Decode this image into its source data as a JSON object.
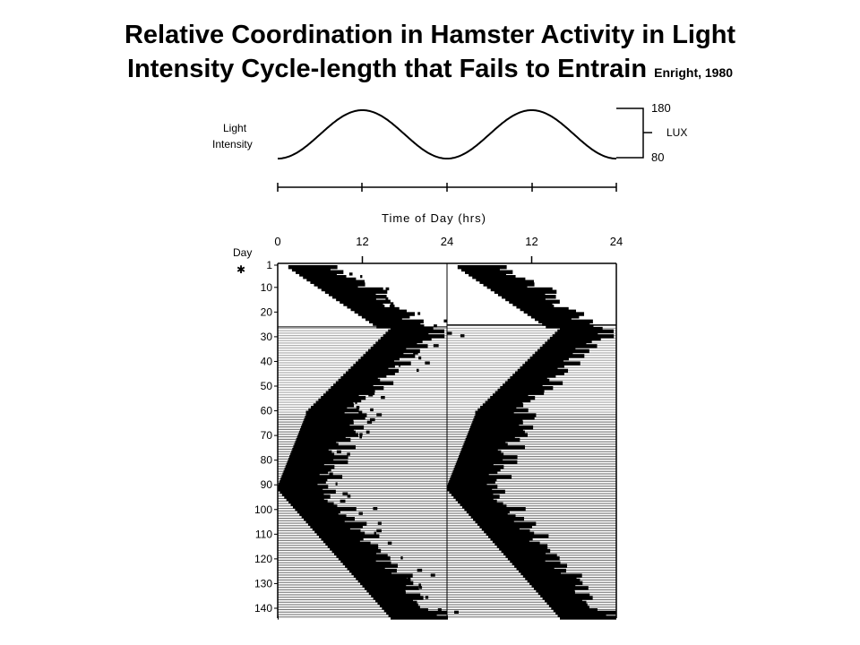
{
  "slide": {
    "title_line1": "Relative Coordination in Hamster Activity in Light",
    "title_line2": "Intensity Cycle-length that Fails to Entrain",
    "citation": "Enright, 1980"
  },
  "light_panel": {
    "ylabel_line1": "Light",
    "ylabel_line2": "Intensity",
    "unit": "LUX",
    "max_label": "180",
    "min_label": "80",
    "max_value": 180,
    "min_value": 80,
    "cycles_shown": 2
  },
  "actogram": {
    "xlabel": "Time of Day (hrs)",
    "x_ticks": [
      "0",
      "12",
      "24",
      "12",
      "24"
    ],
    "day_label": "Day",
    "marker": "✱",
    "y_ticks": [
      "1",
      "10",
      "20",
      "30",
      "40",
      "50",
      "60",
      "70",
      "80",
      "90",
      "100",
      "110",
      "120",
      "130",
      "140"
    ],
    "y_tick_values": [
      1,
      10,
      20,
      30,
      40,
      50,
      60,
      70,
      80,
      90,
      100,
      110,
      120,
      130,
      140
    ],
    "days": 143,
    "hours_per_row": 48,
    "onset_phases": [
      {
        "start_day": 1,
        "end_day": 25,
        "onset_hour_start": 1.5,
        "onset_hour_end": 14
      },
      {
        "start_day": 26,
        "end_day": 60,
        "onset_hour_start": 16,
        "onset_hour_end": 4
      },
      {
        "start_day": 61,
        "end_day": 90,
        "onset_hour_start": 4,
        "onset_hour_end": 0
      },
      {
        "start_day": 91,
        "end_day": 143,
        "onset_hour_start": 0,
        "onset_hour_end": 16
      }
    ]
  }
}
